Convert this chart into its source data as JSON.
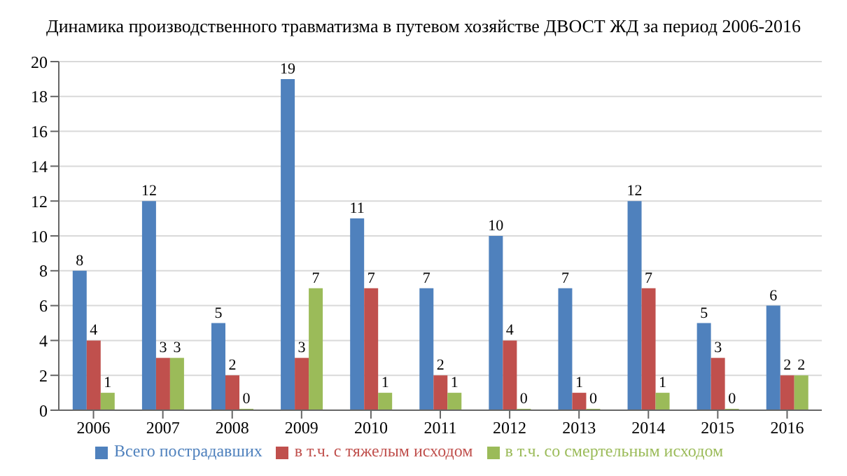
{
  "chart_data": {
    "type": "bar",
    "title": "Динамика производственного травматизма в путевом хозяйстве ДВОСТ ЖД за период 2006-2016",
    "categories": [
      "2006",
      "2007",
      "2008",
      "2009",
      "2010",
      "2011",
      "2012",
      "2013",
      "2014",
      "2015",
      "2016"
    ],
    "series": [
      {
        "name": "Всего пострадавших",
        "color": "#4f81bd",
        "values": [
          8,
          12,
          5,
          19,
          11,
          7,
          10,
          7,
          12,
          5,
          6
        ]
      },
      {
        "name": "в т.ч. с тяжелым исходом",
        "color": "#c0504d",
        "values": [
          4,
          3,
          2,
          3,
          7,
          2,
          4,
          1,
          7,
          3,
          2
        ]
      },
      {
        "name": "в т.ч. со смертельным исходом",
        "color": "#9bbb59",
        "values": [
          1,
          3,
          0,
          7,
          1,
          1,
          0,
          0,
          1,
          0,
          2
        ]
      }
    ],
    "ylim": [
      0,
      20
    ],
    "yticks": [
      0,
      2,
      4,
      6,
      8,
      10,
      12,
      14,
      16,
      18,
      20
    ],
    "grid": "y",
    "legend": "bottom",
    "data_labels": true
  }
}
